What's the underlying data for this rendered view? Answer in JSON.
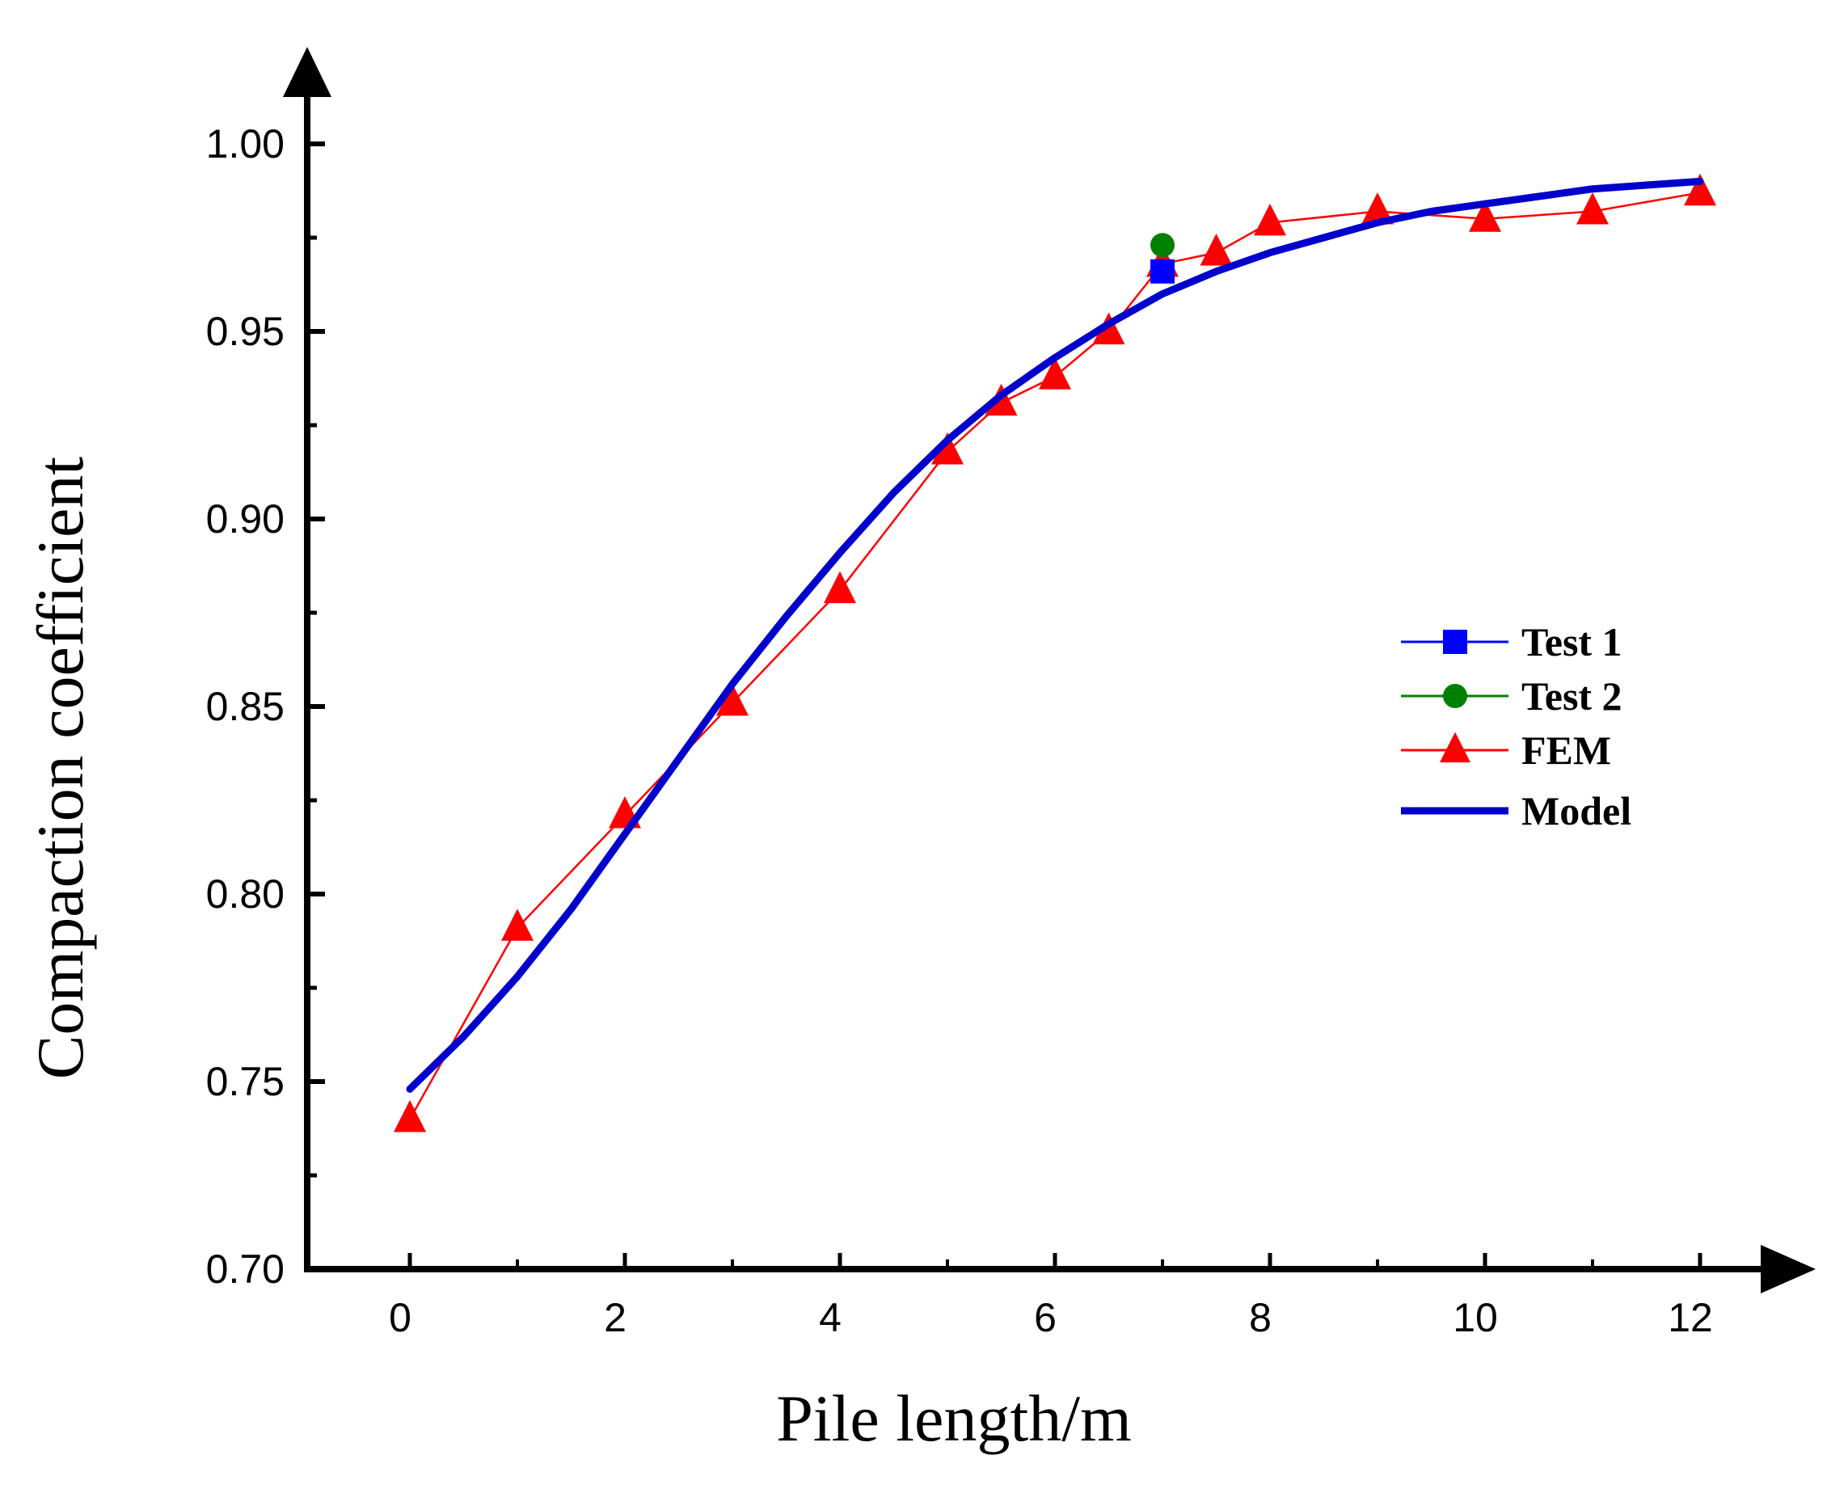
{
  "chart_data": {
    "type": "line",
    "title": "",
    "xlabel": "Pile length/m",
    "ylabel": "Compaction coefficient",
    "xlim": [
      -1,
      12.8
    ],
    "ylim": [
      0.7,
      1.03
    ],
    "xticks": [
      0,
      2,
      4,
      6,
      8,
      10,
      12
    ],
    "yticks": [
      0.7,
      0.75,
      0.8,
      0.85,
      0.9,
      0.95,
      1.0
    ],
    "xtick_labels": [
      "0",
      "2",
      "4",
      "6",
      "8",
      "10",
      "12"
    ],
    "ytick_labels": [
      "0.70",
      "0.75",
      "0.80",
      "0.85",
      "0.90",
      "0.95",
      "1.00"
    ],
    "grid": false,
    "legend_position": "center-right",
    "series": [
      {
        "name": "Test 1",
        "color": "#0000ff",
        "marker": "square",
        "line": "thin",
        "x": [
          7.0
        ],
        "y": [
          0.966
        ]
      },
      {
        "name": "Test 2",
        "color": "#008000",
        "marker": "circle",
        "line": "thin",
        "x": [
          7.0
        ],
        "y": [
          0.973
        ]
      },
      {
        "name": "FEM",
        "color": "#ff0000",
        "marker": "triangle",
        "line": "thin",
        "x": [
          0,
          1,
          2,
          3,
          4,
          5,
          5.5,
          6,
          6.5,
          7,
          7.5,
          8,
          9,
          10,
          11,
          12
        ],
        "y": [
          0.74,
          0.791,
          0.821,
          0.851,
          0.881,
          0.918,
          0.931,
          0.938,
          0.95,
          0.968,
          0.971,
          0.979,
          0.982,
          0.98,
          0.982,
          0.987
        ]
      },
      {
        "name": "Model",
        "color": "#0000cc",
        "marker": "none",
        "line": "thick",
        "x": [
          0,
          0.5,
          1,
          1.5,
          2,
          2.5,
          3,
          3.5,
          4,
          4.5,
          5,
          5.5,
          6,
          6.5,
          7,
          7.5,
          8,
          8.5,
          9,
          9.5,
          10,
          10.5,
          11,
          11.5,
          12
        ],
        "y": [
          0.748,
          0.762,
          0.778,
          0.796,
          0.816,
          0.836,
          0.856,
          0.874,
          0.891,
          0.907,
          0.921,
          0.933,
          0.943,
          0.952,
          0.96,
          0.966,
          0.971,
          0.975,
          0.979,
          0.982,
          0.984,
          0.986,
          0.988,
          0.989,
          0.99
        ]
      }
    ]
  }
}
